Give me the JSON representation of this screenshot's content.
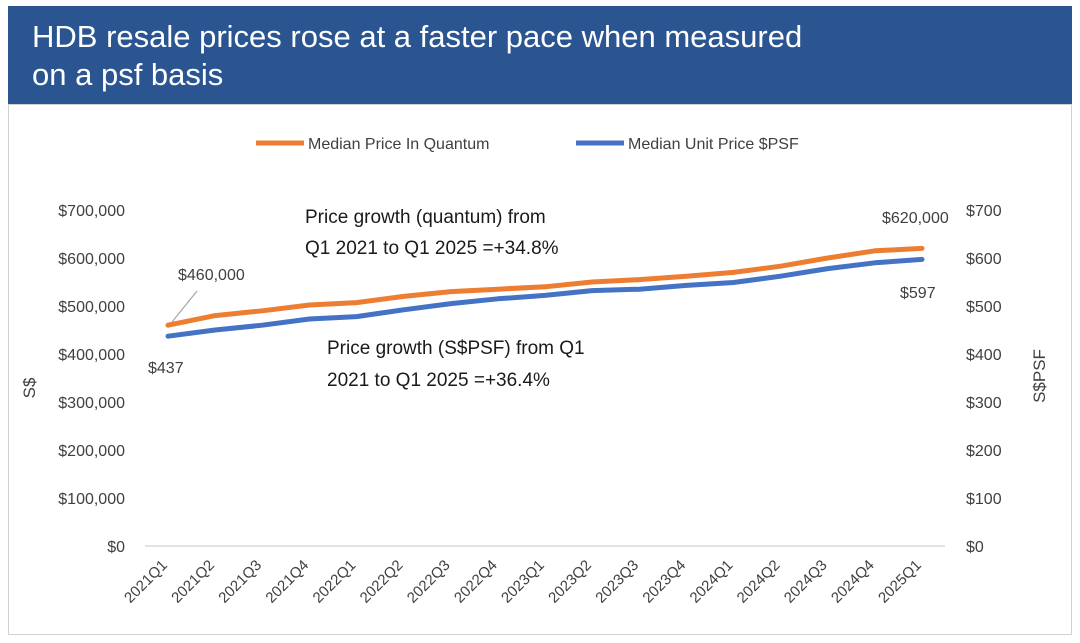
{
  "header": {
    "title_line1": "HDB resale prices rose at a faster pace when measured",
    "title_line2": "on a psf basis"
  },
  "chart_data": {
    "type": "line",
    "categories": [
      "2021Q1",
      "2021Q2",
      "2021Q3",
      "2021Q4",
      "2022Q1",
      "2022Q2",
      "2022Q3",
      "2022Q4",
      "2023Q1",
      "2023Q2",
      "2023Q3",
      "2023Q4",
      "2024Q1",
      "2024Q2",
      "2024Q3",
      "2024Q4",
      "2025Q1"
    ],
    "series": [
      {
        "name": "Median Price In Quantum",
        "axis": "left",
        "color": "#ed7d31",
        "values": [
          460000,
          480000,
          490000,
          502000,
          507000,
          520000,
          530000,
          535000,
          540000,
          550000,
          555000,
          562000,
          570000,
          583000,
          600000,
          615000,
          620000
        ]
      },
      {
        "name": "Median Unit Price $PSF",
        "axis": "right",
        "color": "#4472c4",
        "values": [
          437,
          450,
          460,
          473,
          478,
          492,
          505,
          515,
          522,
          532,
          535,
          543,
          549,
          562,
          578,
          590,
          597
        ]
      }
    ],
    "ylabel": "S$",
    "ylabel_right": "S$PSF",
    "ylim": [
      0,
      700000
    ],
    "ylim_right": [
      0,
      700
    ],
    "yticks_left": [
      "$0",
      "$100,000",
      "$200,000",
      "$300,000",
      "$400,000",
      "$500,000",
      "$600,000",
      "$700,000"
    ],
    "yticks_right": [
      "$0",
      "$100",
      "$200",
      "$300",
      "$400",
      "$500",
      "$600",
      "$700"
    ],
    "legend_position": "top",
    "grid": false,
    "annotations": {
      "start_quantum": "$460,000",
      "start_psf": "$437",
      "end_quantum": "$620,000",
      "end_psf": "$597",
      "quantum_growth_line1": "Price growth (quantum) from",
      "quantum_growth_line2": "Q1 2021 to Q1 2025 =+34.8%",
      "psf_growth_line1": "Price growth (S$PSF) from Q1",
      "psf_growth_line2": "2021 to Q1 2025 =+36.4%"
    }
  }
}
